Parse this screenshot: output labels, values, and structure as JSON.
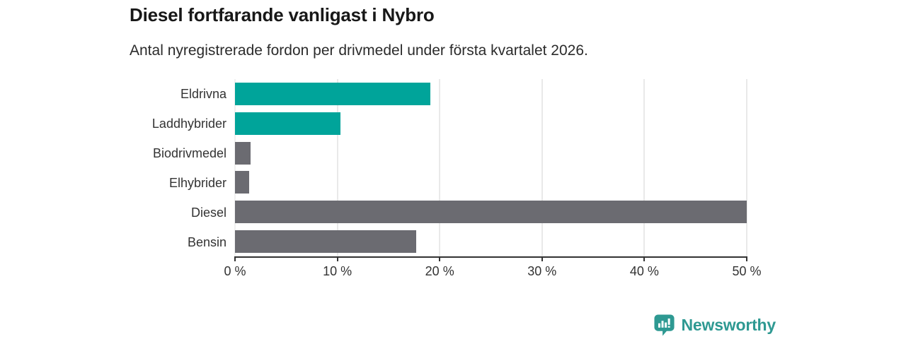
{
  "chart_data": {
    "type": "bar",
    "orientation": "horizontal",
    "title": "Diesel fortfarande vanligast i Nybro",
    "subtitle": "Antal nyregistrerade fordon per drivmedel under första kvartalet 2026.",
    "categories": [
      "Eldrivna",
      "Laddhybrider",
      "Biodrivmedel",
      "Elhybrider",
      "Diesel",
      "Bensin"
    ],
    "values": [
      19.1,
      10.3,
      1.5,
      1.4,
      50.0,
      17.7
    ],
    "unit": "%",
    "bar_colors": [
      "#00a49a",
      "#00a49a",
      "#6b6b71",
      "#6b6b71",
      "#6b6b71",
      "#6b6b71"
    ],
    "xlim": [
      0,
      50
    ],
    "x_ticks": [
      0,
      10,
      20,
      30,
      40,
      50
    ],
    "x_tick_labels": [
      "0 %",
      "10 %",
      "20 %",
      "30 %",
      "40 %",
      "50 %"
    ],
    "grid": "vertical-light",
    "legend": "none",
    "accent_color": "#00a49a",
    "neutral_color": "#6b6b71"
  },
  "branding": {
    "logo_text": "Newsworthy",
    "logo_color": "#2e9992",
    "logo_icon": "bar-chart-pin-icon"
  }
}
